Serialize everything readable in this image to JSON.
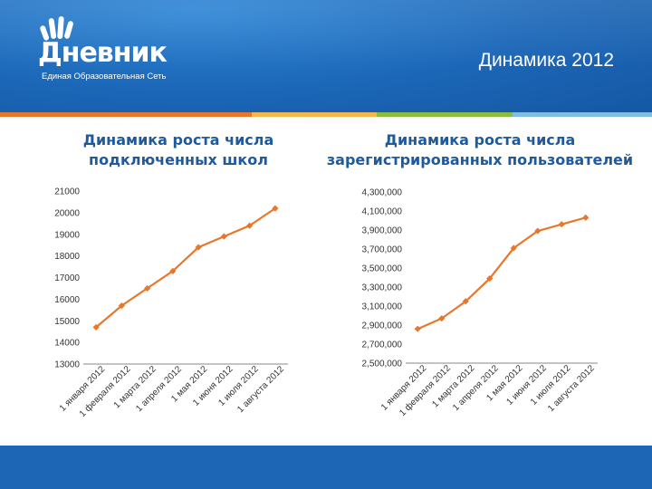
{
  "header": {
    "brand_name": "Дневник",
    "brand_tagline": "Единая Образовательная Сеть",
    "page_title": "Динамика 2012"
  },
  "colors": {
    "header_blue": "#1c67b8",
    "series_orange": "#e8772b",
    "stripe": [
      "#e8772b",
      "#f2b84a",
      "#8bbe3c",
      "#7fbde3"
    ]
  },
  "chart_data": [
    {
      "type": "line",
      "title_lines": [
        "Динамика роста числа",
        "подключенных школ"
      ],
      "categories": [
        "1 января 2012",
        "1 февраля 2012",
        "1 марта 2012",
        "1 апреля 2012",
        "1 мая 2012",
        "1 июня 2012",
        "1 июля 2012",
        "1 августа 2012"
      ],
      "series": [
        {
          "values": [
            14700,
            15700,
            16500,
            17300,
            18400,
            18900,
            19400,
            20200
          ]
        }
      ],
      "ylim": [
        13000,
        21000
      ],
      "yticks": [
        13000,
        14000,
        15000,
        16000,
        17000,
        18000,
        19000,
        20000,
        21000
      ],
      "ytick_labels": [
        "13000",
        "14000",
        "15000",
        "16000",
        "17000",
        "18000",
        "19000",
        "20000",
        "21000"
      ],
      "grid": false,
      "legend": "none"
    },
    {
      "type": "line",
      "title_lines": [
        "Динамика роста числа",
        "зарегистрированных пользователей"
      ],
      "categories": [
        "1 января 2012",
        "1 февраля 2012",
        "1 марта 2012",
        "1 апреля 2012",
        "1 мая 2012",
        "1 июня 2012",
        "1 июля 2012",
        "1 августа 2012"
      ],
      "series": [
        {
          "values": [
            2860000,
            2970000,
            3150000,
            3390000,
            3710000,
            3890000,
            3960000,
            4030000
          ]
        }
      ],
      "ylim": [
        2500000,
        4300000
      ],
      "yticks": [
        2500000,
        2700000,
        2900000,
        3100000,
        3300000,
        3500000,
        3700000,
        3900000,
        4100000,
        4300000
      ],
      "ytick_labels": [
        "2,500,000",
        "2,700,000",
        "2,900,000",
        "3,100,000",
        "3,300,000",
        "3,500,000",
        "3,700,000",
        "3,900,000",
        "4,100,000",
        "4,300,000"
      ],
      "grid": false,
      "legend": "none"
    }
  ]
}
